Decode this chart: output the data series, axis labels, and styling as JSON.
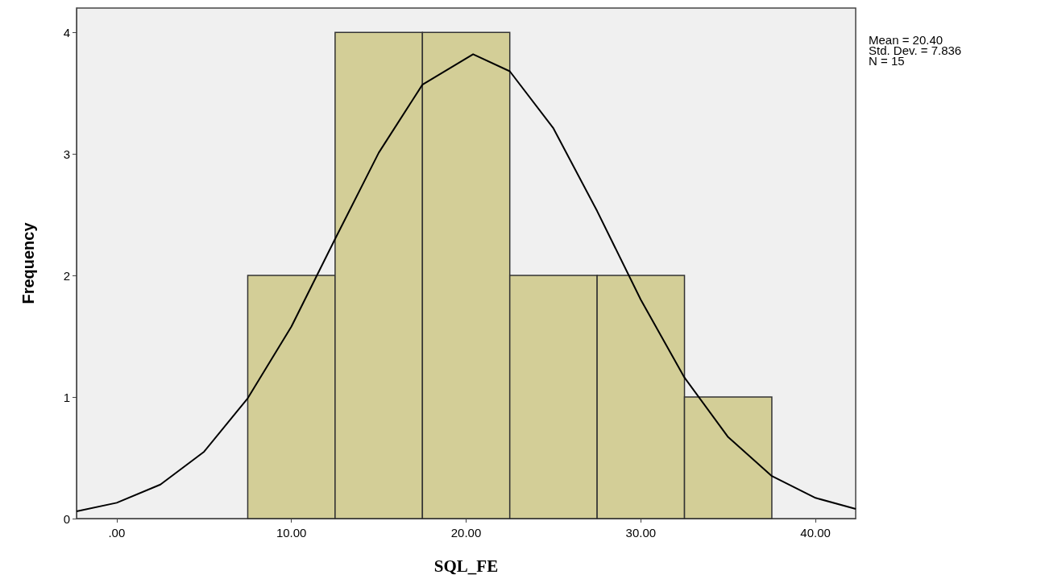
{
  "chart_data": {
    "type": "histogram",
    "xlabel": "SQL_FE",
    "ylabel": "Frequency",
    "bins": [
      7.5,
      12.5,
      17.5,
      22.5,
      27.5,
      32.5,
      37.5
    ],
    "values": [
      2,
      4,
      4,
      2,
      2,
      1
    ],
    "color": "#d3ce97",
    "series": [
      {
        "type": "line",
        "color": "#000000",
        "x": [
          -2.3,
          0,
          2.5,
          5,
          7.5,
          10,
          12.5,
          15,
          17.5,
          20.4,
          22.5,
          25,
          27.5,
          30,
          32.5,
          35,
          37.5,
          40,
          42.3
        ],
        "values": [
          0.06,
          0.13,
          0.28,
          0.55,
          0.99,
          1.58,
          2.3,
          3.01,
          3.57,
          3.82,
          3.68,
          3.21,
          2.53,
          1.8,
          1.16,
          0.67,
          0.35,
          0.17,
          0.08
        ]
      }
    ],
    "xlim": [
      -2.3,
      42.3
    ],
    "xticks": [
      {
        "value": 0,
        "label": ".00"
      },
      {
        "value": 10,
        "label": "10.00"
      },
      {
        "value": 20,
        "label": "20.00"
      },
      {
        "value": 30,
        "label": "30.00"
      },
      {
        "value": 40,
        "label": "40.00"
      }
    ],
    "ylim": [
      0,
      4.2
    ],
    "yticks": [
      0,
      1,
      2,
      3,
      4
    ],
    "grid": false,
    "marker": "none",
    "annotations": [
      "Mean = 20.40",
      "Std. Dev. = 7.836",
      "N = 15"
    ]
  }
}
